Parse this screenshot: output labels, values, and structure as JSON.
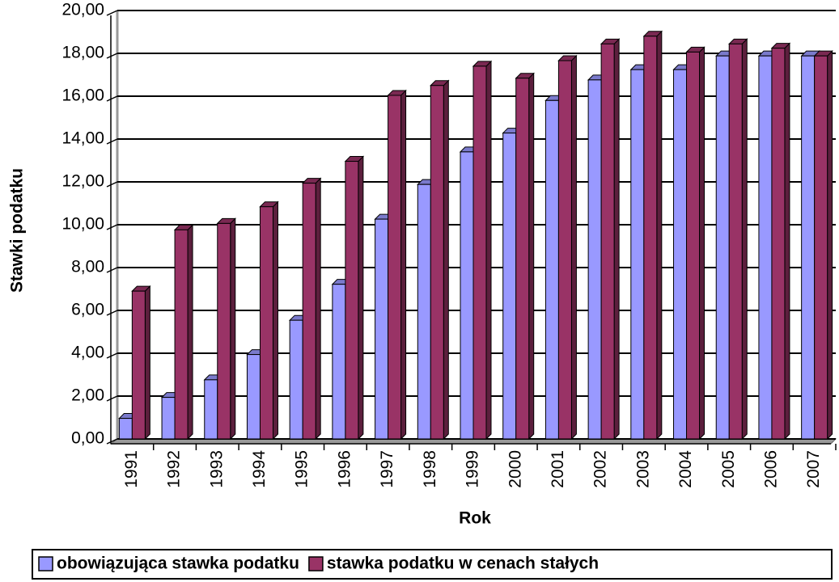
{
  "chart_data": {
    "type": "bar",
    "x_label": "Rok",
    "y_label": "Stawki podatku",
    "categories": [
      "1991",
      "1992",
      "1993",
      "1994",
      "1995",
      "1996",
      "1997",
      "1998",
      "1999",
      "2000",
      "2001",
      "2002",
      "2003",
      "2004",
      "2005",
      "2006",
      "2007"
    ],
    "series": [
      {
        "name": "obowiązująca stawka podatku",
        "color": "#9999ff",
        "values": [
          0.96,
          1.94,
          2.76,
          3.94,
          5.54,
          7.22,
          10.26,
          11.88,
          13.4,
          14.28,
          15.8,
          16.76,
          17.24,
          17.24,
          17.88,
          17.88,
          17.88
        ]
      },
      {
        "name": "stawka podatku w cenach stałych",
        "color": "#993366",
        "values": [
          6.9,
          9.76,
          10.06,
          10.84,
          11.94,
          12.96,
          16.04,
          16.5,
          17.4,
          16.84,
          17.66,
          18.44,
          18.8,
          18.06,
          18.44,
          18.24,
          17.88
        ]
      }
    ],
    "ylim": [
      0,
      20
    ],
    "yticks": [
      {
        "value": 0,
        "label": "0,00"
      },
      {
        "value": 2,
        "label": "2,00"
      },
      {
        "value": 4,
        "label": "4,00"
      },
      {
        "value": 6,
        "label": "6,00"
      },
      {
        "value": 8,
        "label": "8,00"
      },
      {
        "value": 10,
        "label": "10,00"
      },
      {
        "value": 12,
        "label": "12,00"
      },
      {
        "value": 14,
        "label": "14,00"
      },
      {
        "value": 16,
        "label": "16,00"
      },
      {
        "value": 18,
        "label": "18,00"
      },
      {
        "value": 20,
        "label": "20,00"
      }
    ],
    "grid": true,
    "legend": "bottom"
  }
}
